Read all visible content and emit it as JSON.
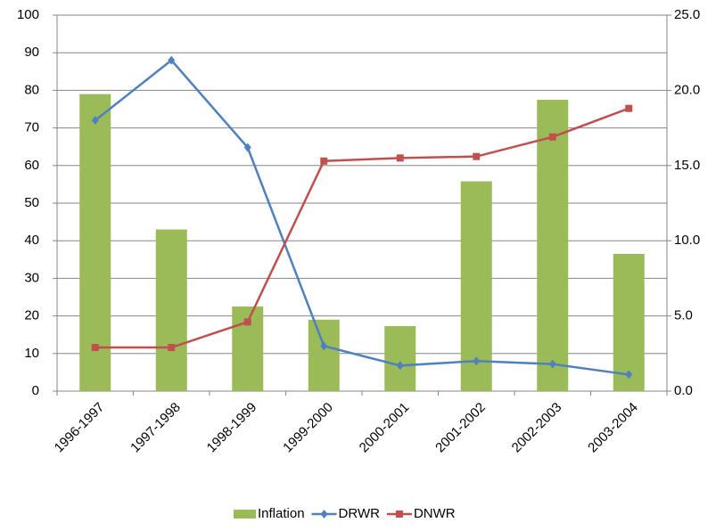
{
  "chart_data": {
    "type": "bar-line",
    "categories": [
      "1996-1997",
      "1997-1998",
      "1998-1999",
      "1999-2000",
      "2000-2001",
      "2001-2002",
      "2002-2003",
      "2003-2004"
    ],
    "series": [
      {
        "name": "Inflation",
        "type": "bar",
        "color": "#9bbb59",
        "values": [
          79,
          43,
          22.5,
          19,
          17.3,
          55.8,
          77.5,
          36.5
        ]
      },
      {
        "name": "DRWR",
        "type": "line",
        "marker": "diamond",
        "axis": "y2",
        "color": "#4f81bd",
        "values": [
          18.0,
          22.0,
          16.2,
          3.0,
          1.7,
          2.0,
          1.8,
          1.1
        ]
      },
      {
        "name": "DNWR",
        "type": "line",
        "marker": "square",
        "axis": "y2",
        "color": "#c0504d",
        "values": [
          2.9,
          2.9,
          4.6,
          15.3,
          15.5,
          15.6,
          16.9,
          18.8
        ]
      }
    ],
    "ylim": [
      0,
      100
    ],
    "yticks": [
      0,
      10,
      20,
      30,
      40,
      50,
      60,
      70,
      80,
      90,
      100
    ],
    "y2lim": [
      0,
      25
    ],
    "y2ticks": [
      {
        "value": 0,
        "label": "0.0"
      },
      {
        "value": 5,
        "label": "5.0"
      },
      {
        "value": 10,
        "label": "10.0"
      },
      {
        "value": 15,
        "label": "15.0"
      },
      {
        "value": 20,
        "label": "20.0"
      },
      {
        "value": 25,
        "label": "25.0"
      }
    ],
    "grid": true,
    "legend": "bottom"
  }
}
